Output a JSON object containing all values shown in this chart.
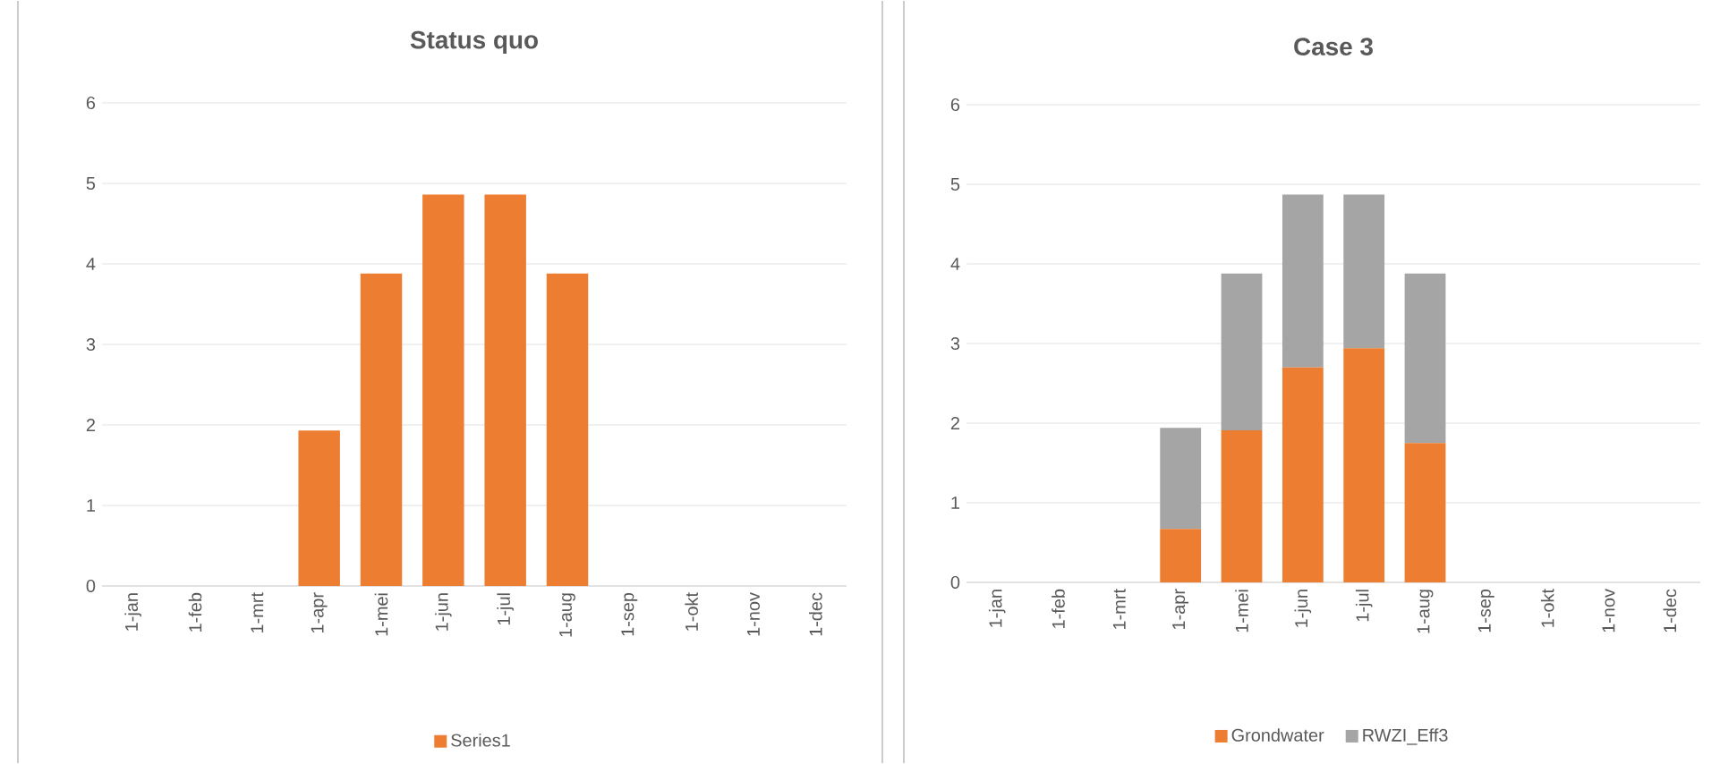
{
  "chart_data": [
    {
      "type": "bar",
      "title": "Status quo",
      "categories": [
        "1-jan",
        "1-feb",
        "1-mrt",
        "1-apr",
        "1-mei",
        "1-jun",
        "1-jul",
        "1-aug",
        "1-sep",
        "1-okt",
        "1-nov",
        "1-dec"
      ],
      "series": [
        {
          "name": "Series1",
          "color": "#ed7d31",
          "values": [
            null,
            null,
            null,
            1.93,
            3.88,
            4.86,
            4.86,
            3.88,
            null,
            null,
            null,
            null
          ]
        }
      ],
      "ylim": [
        0,
        6
      ],
      "yticks": [
        0,
        1,
        2,
        3,
        4,
        5,
        6
      ],
      "grid": "y",
      "legend": "bottom"
    },
    {
      "type": "bar",
      "title": "Case 3",
      "categories": [
        "1-jan",
        "1-feb",
        "1-mrt",
        "1-apr",
        "1-mei",
        "1-jun",
        "1-jul",
        "1-aug",
        "1-sep",
        "1-okt",
        "1-nov",
        "1-dec"
      ],
      "stacked": true,
      "series": [
        {
          "name": "Grondwater",
          "color": "#ed7d31",
          "values": [
            null,
            null,
            null,
            0.67,
            1.91,
            2.7,
            2.94,
            1.75,
            null,
            null,
            null,
            null
          ]
        },
        {
          "name": "RWZI_Eff3",
          "color": "#a5a5a5",
          "values": [
            null,
            null,
            null,
            1.27,
            1.97,
            2.17,
            1.93,
            2.13,
            null,
            null,
            null,
            null
          ]
        }
      ],
      "ylim": [
        0,
        6
      ],
      "yticks": [
        0,
        1,
        2,
        3,
        4,
        5,
        6
      ],
      "grid": "y",
      "legend": "bottom"
    }
  ]
}
